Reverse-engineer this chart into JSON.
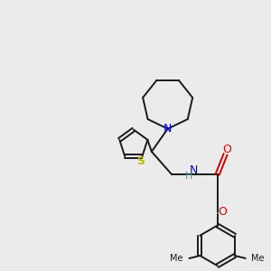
{
  "bg_color": "#ebebeb",
  "bond_color": "#1a1a1a",
  "N_color": "#0000ee",
  "O_color": "#dd0000",
  "S_color": "#bbbb00",
  "H_color": "#448888",
  "figsize": [
    3.0,
    3.0
  ],
  "dpi": 100,
  "xlim": [
    0,
    10
  ],
  "ylim": [
    0,
    10
  ]
}
